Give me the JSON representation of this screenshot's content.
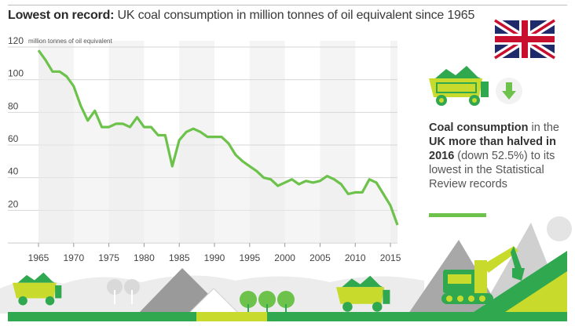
{
  "title": {
    "bold": "Lowest on record:",
    "rest": " UK coal consumption in million tonnes of oil equivalent since 1965"
  },
  "unit_label": "million tonnes of oil equivalent",
  "callout": {
    "p1": "Coal consumption",
    "p2": " in the ",
    "p3": "UK more than halved in 2016",
    "p4": " (down 52.5%) to its lowest in the Statistical Review records"
  },
  "colors": {
    "line": "#6cc24a",
    "accent_green": "#2fa84f",
    "lime": "#c8da2b",
    "flag_blue": "#1f2a6b",
    "flag_red": "#c8102e"
  },
  "icons": [
    "uk-flag-icon",
    "dump-truck-icon",
    "down-arrow-icon",
    "excavator-icon",
    "tree-icon",
    "mountain-icon",
    "sun-icon"
  ],
  "chart_data": {
    "type": "area",
    "ylabel": "million tonnes of oil equivalent",
    "ylim": [
      0,
      120
    ],
    "xlim": [
      1965,
      2016
    ],
    "yticks": [
      20,
      40,
      60,
      80,
      100,
      120
    ],
    "xticks": [
      1965,
      1970,
      1975,
      1980,
      1985,
      1990,
      1995,
      2000,
      2005,
      2010,
      2015
    ],
    "series": [
      {
        "x": [
          1965,
          1966,
          1967,
          1968,
          1969,
          1970,
          1971,
          1972,
          1973,
          1974,
          1975,
          1976,
          1977,
          1978,
          1979,
          1980,
          1981,
          1982,
          1983,
          1984,
          1985,
          1986,
          1987,
          1988,
          1989,
          1990,
          1991,
          1992,
          1993,
          1994,
          1995,
          1996,
          1997,
          1998,
          1999,
          2000,
          2001,
          2002,
          2003,
          2004,
          2005,
          2006,
          2007,
          2008,
          2009,
          2010,
          2011,
          2012,
          2013,
          2014,
          2015,
          2016
        ],
        "values": [
          118,
          112,
          105,
          105,
          102,
          96,
          84,
          75,
          81,
          71,
          71,
          73,
          73,
          71,
          77,
          71,
          71,
          66,
          66,
          47,
          63,
          68,
          70,
          68,
          65,
          65,
          65,
          61,
          54,
          50,
          47,
          44,
          40,
          39,
          35,
          37,
          39,
          36,
          38,
          37,
          38,
          41,
          39,
          36,
          30,
          31,
          31,
          39,
          37,
          30,
          23,
          11
        ]
      }
    ]
  }
}
